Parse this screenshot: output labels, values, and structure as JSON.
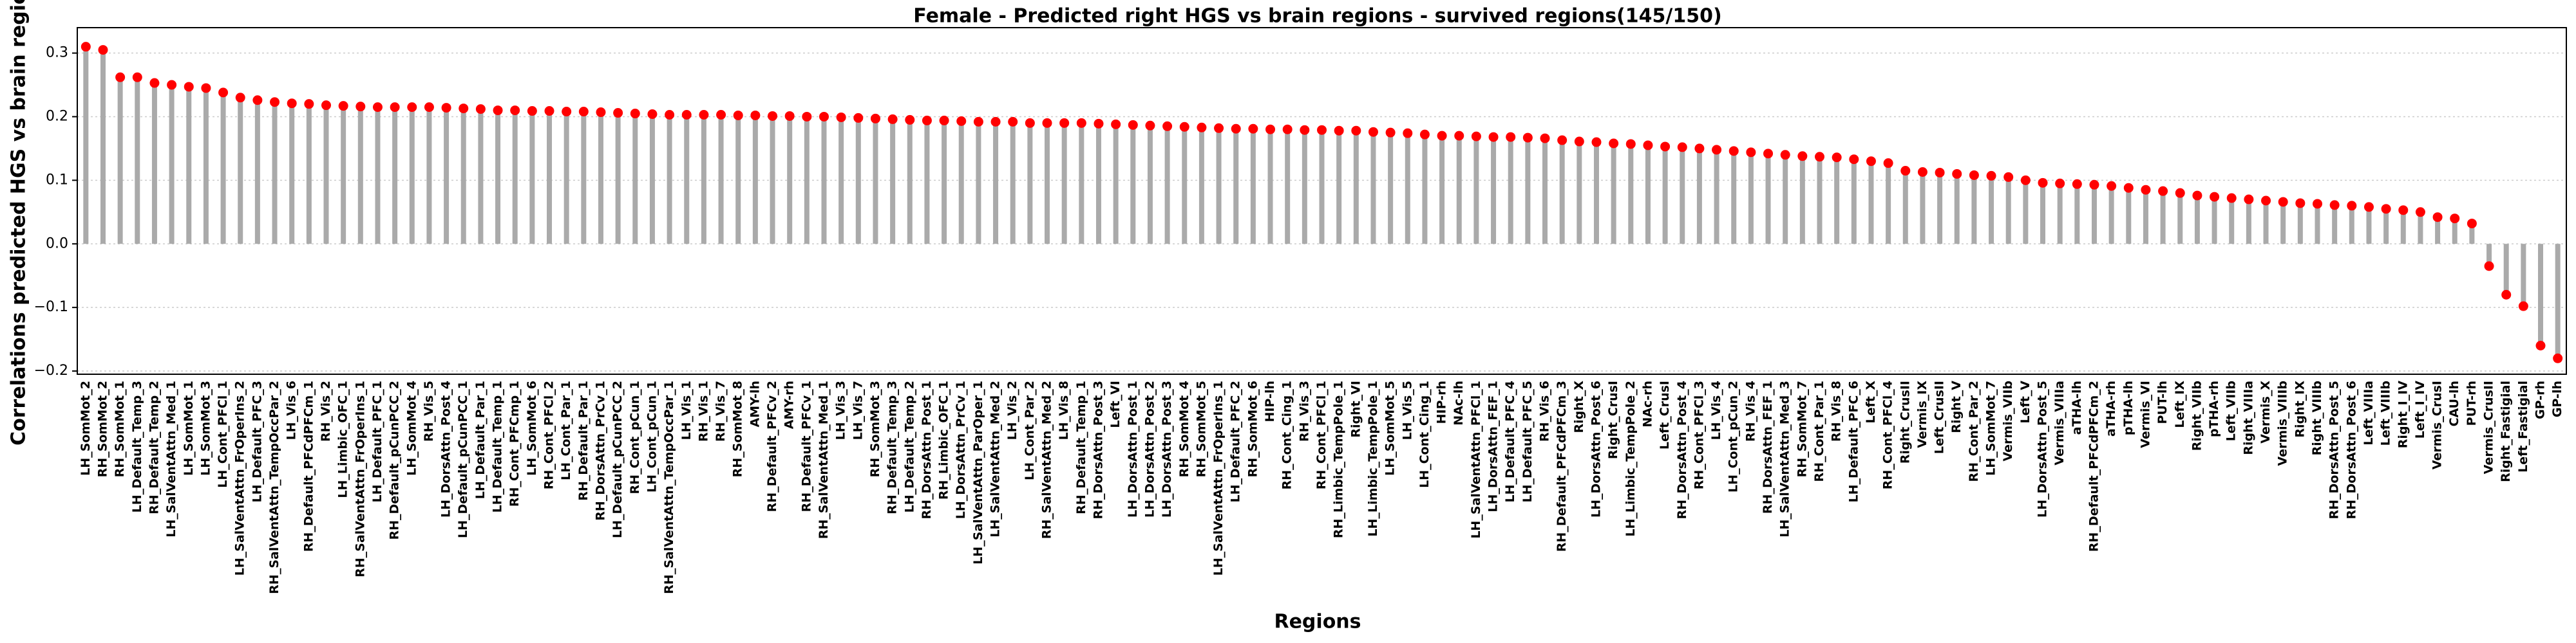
{
  "chart_data": {
    "type": "lollipop",
    "title": "Female - Predicted right HGS vs brain regions - survived regions(145/150)",
    "x_label": "Regions",
    "y_label": "Correlations predicted HGS vs brain regions",
    "stem_color": "#aaaaaa",
    "color": "#ff0000",
    "grid": true,
    "ylim": [
      -0.205,
      0.34
    ],
    "yticks": [
      {
        "value": -0.2,
        "label": "−0.2"
      },
      {
        "value": -0.1,
        "label": "−0.1"
      },
      {
        "value": 0,
        "label": "0.0"
      },
      0.1,
      0.2,
      0.3
    ],
    "categories": [
      "LH_SomMot_2",
      "RH_SomMot_2",
      "RH_SomMot_1",
      "LH_Default_Temp_3",
      "RH_Default_Temp_2",
      "LH_SalVentAttn_Med_1",
      "LH_SomMot_1",
      "LH_SomMot_3",
      "LH_Cont_PFCl_1",
      "LH_SalVentAttn_FrOperIns_2",
      "LH_Default_PFC_3",
      "RH_SalVentAttn_TempOccPar_2",
      "LH_Vis_6",
      "RH_Default_PFCdPFCm_1",
      "RH_Vis_2",
      "LH_Limbic_OFC_1",
      "RH_SalVentAttn_FrOperIns_1",
      "LH_Default_PFC_1",
      "RH_Default_pCunPCC_2",
      "LH_SomMot_4",
      "RH_Vis_5",
      "LH_DorsAttn_Post_4",
      "LH_Default_pCunPCC_1",
      "LH_Default_Par_1",
      "LH_Default_Temp_1",
      "RH_Cont_PFCmp_1",
      "LH_SomMot_6",
      "RH_Cont_PFCl_2",
      "LH_Cont_Par_1",
      "RH_Default_Par_1",
      "RH_DorsAttn_PrCv_1",
      "LH_Default_pCunPCC_2",
      "RH_Cont_pCun_1",
      "LH_Cont_pCun_1",
      "RH_SalVentAttn_TempOccPar_1",
      "LH_Vis_1",
      "RH_Vis_1",
      "RH_Vis_7",
      "RH_SomMot_8",
      "AMY-lh",
      "RH_Default_PFCv_2",
      "AMY-rh",
      "RH_Default_PFCv_1",
      "RH_SalVentAttn_Med_1",
      "LH_Vis_3",
      "LH_Vis_7",
      "RH_SomMot_3",
      "RH_Default_Temp_3",
      "LH_Default_Temp_2",
      "RH_DorsAttn_Post_1",
      "RH_Limbic_OFC_1",
      "LH_DorsAttn_PrCv_1",
      "LH_SalVentAttn_ParOper_1",
      "LH_SalVentAttn_Med_2",
      "LH_Vis_2",
      "LH_Cont_Par_2",
      "RH_SalVentAttn_Med_2",
      "LH_Vis_8",
      "RH_Default_Temp_1",
      "RH_DorsAttn_Post_3",
      "Left_VI",
      "LH_DorsAttn_Post_1",
      "LH_DorsAttn_Post_2",
      "LH_DorsAttn_Post_3",
      "RH_SomMot_4",
      "RH_SomMot_5",
      "LH_SalVentAttn_FrOperIns_1",
      "LH_Default_PFC_2",
      "RH_SomMot_6",
      "HIP-lh",
      "RH_Cont_Cing_1",
      "RH_Vis_3",
      "RH_Cont_PFCl_1",
      "RH_Limbic_TempPole_1",
      "Right_VI",
      "LH_Limbic_TempPole_1",
      "LH_SomMot_5",
      "LH_Vis_5",
      "LH_Cont_Cing_1",
      "HIP-rh",
      "NAc-lh",
      "LH_SalVentAttn_PFCl_1",
      "LH_DorsAttn_FEF_1",
      "LH_Default_PFC_4",
      "LH_Default_PFC_5",
      "RH_Vis_6",
      "RH_Default_PFCdPFCm_3",
      "Right_X",
      "LH_DorsAttn_Post_6",
      "Right_CrusI",
      "LH_Limbic_TempPole_2",
      "NAc-rh",
      "Left_CrusI",
      "RH_DorsAttn_Post_4",
      "RH_Cont_PFCl_3",
      "LH_Vis_4",
      "LH_Cont_pCun_2",
      "RH_Vis_4",
      "RH_DorsAttn_FEF_1",
      "LH_SalVentAttn_Med_3",
      "RH_SomMot_7",
      "RH_Cont_Par_1",
      "RH_Vis_8",
      "LH_Default_PFC_6",
      "Left_X",
      "RH_Cont_PFCl_4",
      "Right_CrusII",
      "Vermis_IX",
      "Left_CrusII",
      "Right_V",
      "RH_Cont_Par_2",
      "LH_SomMot_7",
      "Vermis_VIIb",
      "Left_V",
      "LH_DorsAttn_Post_5",
      "Vermis_VIIIa",
      "aTHA-lh",
      "RH_Default_PFCdPFCm_2",
      "aTHA-rh",
      "pTHA-lh",
      "Vermis_VI",
      "PUT-lh",
      "Left_IX",
      "Right_VIIb",
      "pTHA-rh",
      "Left_VIIb",
      "Right_VIIIa",
      "Vermis_X",
      "Vermis_VIIIb",
      "Right_IX",
      "Right_VIIIb",
      "RH_DorsAttn_Post_5",
      "RH_DorsAttn_Post_6",
      "Left_VIIIa",
      "Left_VIIIb",
      "Right_I_IV",
      "Left_I_IV",
      "Vermis_CrusI",
      "CAU-lh",
      "PUT-rh",
      "Vermis_CrusII",
      "Right_Fastigial",
      "Left_Fastigial",
      "GP-rh",
      "GP-lh"
    ],
    "values": [
      0.31,
      0.305,
      0.262,
      0.262,
      0.253,
      0.25,
      0.247,
      0.245,
      0.238,
      0.23,
      0.226,
      0.223,
      0.221,
      0.22,
      0.218,
      0.217,
      0.216,
      0.215,
      0.215,
      0.215,
      0.215,
      0.214,
      0.213,
      0.212,
      0.21,
      0.21,
      0.209,
      0.209,
      0.208,
      0.208,
      0.207,
      0.206,
      0.205,
      0.204,
      0.203,
      0.203,
      0.203,
      0.203,
      0.202,
      0.202,
      0.201,
      0.201,
      0.2,
      0.2,
      0.199,
      0.198,
      0.197,
      0.196,
      0.195,
      0.194,
      0.194,
      0.193,
      0.192,
      0.192,
      0.192,
      0.19,
      0.19,
      0.19,
      0.19,
      0.189,
      0.188,
      0.187,
      0.186,
      0.185,
      0.184,
      0.183,
      0.182,
      0.181,
      0.181,
      0.18,
      0.18,
      0.179,
      0.179,
      0.178,
      0.178,
      0.176,
      0.175,
      0.174,
      0.172,
      0.17,
      0.17,
      0.169,
      0.168,
      0.168,
      0.167,
      0.166,
      0.163,
      0.161,
      0.16,
      0.158,
      0.157,
      0.155,
      0.153,
      0.152,
      0.15,
      0.148,
      0.146,
      0.144,
      0.142,
      0.14,
      0.138,
      0.137,
      0.136,
      0.133,
      0.13,
      0.127,
      0.115,
      0.113,
      0.112,
      0.11,
      0.108,
      0.107,
      0.105,
      0.1,
      0.096,
      0.095,
      0.094,
      0.093,
      0.091,
      0.088,
      0.085,
      0.083,
      0.08,
      0.076,
      0.074,
      0.072,
      0.07,
      0.068,
      0.066,
      0.064,
      0.063,
      0.061,
      0.06,
      0.058,
      0.055,
      0.053,
      0.05,
      0.042,
      0.04,
      0.032,
      -0.035,
      -0.08,
      -0.098,
      -0.16,
      -0.18
    ]
  }
}
